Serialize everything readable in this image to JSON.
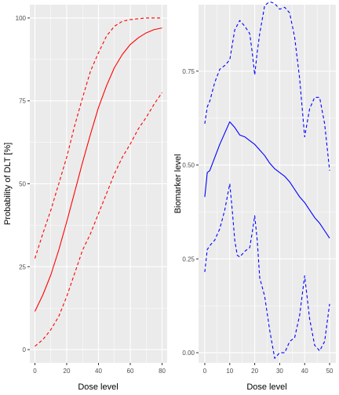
{
  "colors": {
    "panel_bg": "#EBEBEB",
    "grid_major": "#FFFFFF",
    "tick_text": "#4D4D4D",
    "axis_title": "#000000",
    "dlt_curve": "#FF0000",
    "biomarker_curve": "#0000FF"
  },
  "chart_data": [
    {
      "type": "line",
      "xlabel": "Dose level",
      "ylabel": "Probability of DLT [%]",
      "xlim": [
        0,
        80
      ],
      "ylim": [
        0,
        100
      ],
      "xticks": [
        "0",
        "20",
        "40",
        "60",
        "80"
      ],
      "yticks": [
        "0",
        "25",
        "50",
        "75",
        "100"
      ],
      "grid": true,
      "legend": "none",
      "series": [
        {
          "role": "estimate",
          "style": "solid",
          "color": "#FF0000",
          "x": [
            0,
            5,
            10,
            15,
            20,
            25,
            30,
            35,
            40,
            45,
            50,
            55,
            60,
            65,
            70,
            75,
            80
          ],
          "values": [
            11.5,
            16.5,
            22.5,
            30.0,
            38.5,
            47.5,
            56.5,
            65.0,
            73.0,
            79.5,
            85.0,
            89.0,
            92.0,
            94.0,
            95.5,
            96.5,
            97.0
          ]
        },
        {
          "role": "lower",
          "style": "dashed",
          "color": "#FF0000",
          "x": [
            0,
            5,
            10,
            15,
            20,
            25,
            30,
            35,
            40,
            45,
            50,
            55,
            60,
            65,
            70,
            75,
            80
          ],
          "values": [
            1.0,
            3.0,
            6.0,
            10.0,
            16.0,
            23.0,
            30.0,
            35.0,
            41.0,
            47.0,
            53.0,
            58.0,
            62.0,
            66.5,
            70.0,
            74.0,
            77.5
          ]
        },
        {
          "role": "upper",
          "style": "dashed",
          "color": "#FF0000",
          "x": [
            0,
            5,
            10,
            15,
            20,
            25,
            30,
            35,
            40,
            45,
            50,
            55,
            60,
            65,
            70,
            75,
            80
          ],
          "values": [
            27.5,
            35.0,
            42.0,
            50.0,
            58.0,
            67.5,
            76.0,
            84.0,
            89.5,
            94.5,
            97.5,
            99.0,
            99.5,
            99.8,
            100.0,
            100.0,
            100.0
          ]
        }
      ]
    },
    {
      "type": "line",
      "xlabel": "Dose level",
      "ylabel": "Biomarker level",
      "xlim": [
        0,
        50
      ],
      "ylim": [
        0,
        0.9
      ],
      "xticks": [
        "0",
        "10",
        "20",
        "30",
        "40",
        "50"
      ],
      "yticks": [
        "0.00",
        "0.25",
        "0.50",
        "0.75"
      ],
      "grid": true,
      "legend": "none",
      "series": [
        {
          "role": "estimate",
          "style": "solid",
          "color": "#0000FF",
          "x": [
            0,
            1,
            2,
            4,
            6,
            8,
            10,
            12,
            14,
            16,
            18,
            20,
            22,
            24,
            26,
            28,
            30,
            32,
            34,
            36,
            38,
            40,
            42,
            44,
            46,
            48,
            50
          ],
          "values": [
            0.415,
            0.48,
            0.485,
            0.52,
            0.555,
            0.585,
            0.615,
            0.6,
            0.58,
            0.575,
            0.565,
            0.555,
            0.54,
            0.525,
            0.505,
            0.49,
            0.48,
            0.47,
            0.455,
            0.435,
            0.415,
            0.4,
            0.38,
            0.36,
            0.345,
            0.325,
            0.305
          ]
        },
        {
          "role": "lower",
          "style": "dashed",
          "color": "#0000FF",
          "x": [
            0,
            1,
            2,
            4,
            6,
            8,
            10,
            11,
            12,
            13,
            14,
            16,
            18,
            19,
            20,
            21,
            22,
            24,
            26,
            28,
            30,
            32,
            34,
            36,
            38,
            40,
            42,
            44,
            46,
            48,
            50
          ],
          "values": [
            0.215,
            0.275,
            0.285,
            0.3,
            0.33,
            0.38,
            0.45,
            0.38,
            0.3,
            0.26,
            0.255,
            0.27,
            0.28,
            0.32,
            0.365,
            0.3,
            0.2,
            0.15,
            0.06,
            -0.015,
            0.0,
            0.0,
            0.03,
            0.04,
            0.1,
            0.205,
            0.09,
            0.02,
            0.005,
            0.03,
            0.13
          ]
        },
        {
          "role": "upper",
          "style": "dashed",
          "color": "#0000FF",
          "x": [
            0,
            1,
            2,
            4,
            6,
            8,
            10,
            12,
            14,
            16,
            18,
            19,
            20,
            21,
            22,
            24,
            26,
            28,
            30,
            32,
            34,
            36,
            38,
            40,
            42,
            44,
            46,
            48,
            50
          ],
          "values": [
            0.61,
            0.655,
            0.67,
            0.72,
            0.755,
            0.765,
            0.78,
            0.86,
            0.885,
            0.87,
            0.85,
            0.8,
            0.74,
            0.8,
            0.85,
            0.925,
            0.935,
            0.93,
            0.915,
            0.92,
            0.905,
            0.84,
            0.73,
            0.575,
            0.65,
            0.68,
            0.68,
            0.61,
            0.485
          ]
        }
      ]
    }
  ]
}
